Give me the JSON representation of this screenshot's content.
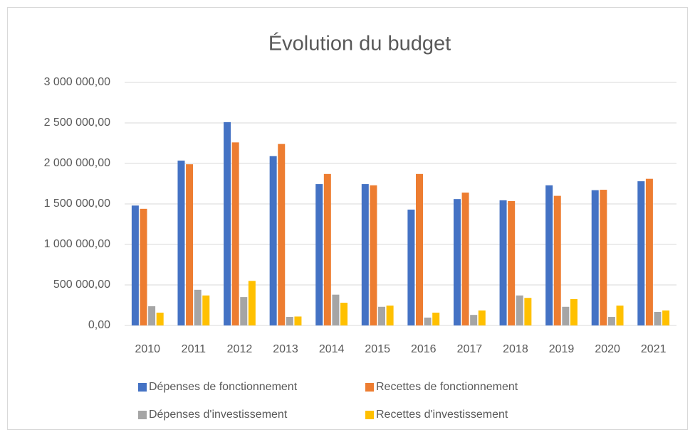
{
  "chart_data": {
    "type": "bar",
    "title": "Évolution du budget",
    "categories": [
      "2010",
      "2011",
      "2012",
      "2013",
      "2014",
      "2015",
      "2016",
      "2017",
      "2018",
      "2019",
      "2020",
      "2021"
    ],
    "series": [
      {
        "name": "Dépenses de fonctionnement",
        "color": "#4472c4",
        "values": [
          1480000,
          2035000,
          2510000,
          2090000,
          1745000,
          1745000,
          1430000,
          1560000,
          1545000,
          1730000,
          1670000,
          1780000
        ]
      },
      {
        "name": "Recettes de fonctionnement",
        "color": "#ed7d31",
        "values": [
          1440000,
          1990000,
          2260000,
          2240000,
          1870000,
          1730000,
          1870000,
          1640000,
          1535000,
          1600000,
          1675000,
          1810000
        ]
      },
      {
        "name": "Dépenses d'investissement",
        "color": "#a5a5a5",
        "values": [
          237000,
          440000,
          350000,
          105000,
          380000,
          230000,
          97000,
          130000,
          370000,
          230000,
          105000,
          167000
        ]
      },
      {
        "name": "Recettes d'investissement",
        "color": "#ffc000",
        "values": [
          158000,
          370000,
          550000,
          110000,
          280000,
          245000,
          158000,
          185000,
          340000,
          325000,
          245000,
          185000
        ]
      }
    ],
    "ylim": [
      0,
      3000000
    ],
    "yticks": [
      {
        "value": 0,
        "label": "0,00"
      },
      {
        "value": 500000,
        "label": "500 000,00"
      },
      {
        "value": 1000000,
        "label": "1 000 000,00"
      },
      {
        "value": 1500000,
        "label": "1 500 000,00"
      },
      {
        "value": 2000000,
        "label": "2 000 000,00"
      },
      {
        "value": 2500000,
        "label": "2 500 000,00"
      },
      {
        "value": 3000000,
        "label": "3 000 000,00"
      }
    ],
    "grid": true,
    "legend": "bottom"
  }
}
